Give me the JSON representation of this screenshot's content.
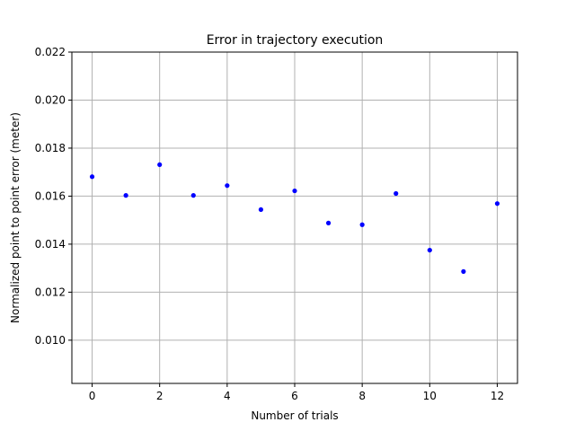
{
  "chart_data": {
    "type": "scatter",
    "title": "Error in trajectory execution",
    "xlabel": "Number of trials",
    "ylabel": "Normalized point to point error (meter)",
    "x": [
      0,
      1,
      2,
      3,
      4,
      5,
      6,
      7,
      8,
      9,
      10,
      11,
      12
    ],
    "y": [
      0.01681,
      0.01603,
      0.01731,
      0.01603,
      0.01644,
      0.01544,
      0.01622,
      0.01488,
      0.01481,
      0.01611,
      0.01375,
      0.01286,
      0.01569
    ],
    "xlim": [
      -0.6,
      12.6
    ],
    "ylim": [
      0.0082,
      0.022
    ],
    "xticks": [
      "0",
      "2",
      "4",
      "6",
      "8",
      "10",
      "12"
    ],
    "yticks": [
      "0.010",
      "0.012",
      "0.014",
      "0.016",
      "0.018",
      "0.020",
      "0.022"
    ],
    "grid": true,
    "marker_color": "#0000ff",
    "grid_color": "#b0b0b0"
  }
}
